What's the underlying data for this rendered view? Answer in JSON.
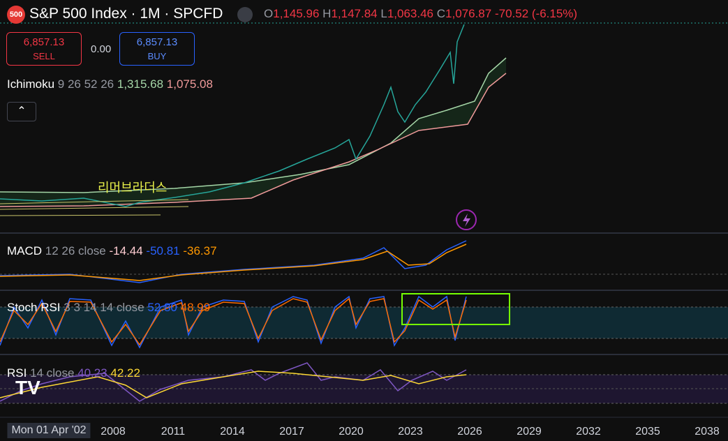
{
  "header": {
    "badge": "500",
    "title": "S&P 500 Index · 1M · SPCFD",
    "ohlc": [
      {
        "label": "O",
        "value": "1,145.96"
      },
      {
        "label": "H",
        "value": "1,147.84"
      },
      {
        "label": "L",
        "value": "1,063.46"
      },
      {
        "label": "C",
        "value": "1,076.87"
      }
    ],
    "change": "-70.52 (-6.15%)"
  },
  "trade": {
    "sell_price": "6,857.13",
    "sell_label": "SELL",
    "spread": "0.00",
    "buy_price": "6,857.13",
    "buy_label": "BUY"
  },
  "indicators": {
    "ichimoku": {
      "name": "Ichimoku",
      "params": "9 26 52 26",
      "v1": "1,315.68",
      "v2": "1,075.08"
    },
    "annotation": "리머브라더스",
    "macd": {
      "name": "MACD",
      "params": "12 26 close",
      "v1": "-14.44",
      "v2": "-50.81",
      "v3": "-36.37"
    },
    "stoch_rsi": {
      "name": "Stoch RSI",
      "params": "3 3 14 14 close",
      "v1": "52.80",
      "v2": "48.99"
    },
    "rsi": {
      "name": "RSI",
      "params": "14 close",
      "v1": "40.23",
      "v2": "42.22"
    }
  },
  "x_axis": [
    "Mon 01 Apr '02",
    "2008",
    "2011",
    "2014",
    "2017",
    "2020",
    "2023",
    "2026",
    "2029",
    "2032",
    "2035",
    "2038"
  ]
}
